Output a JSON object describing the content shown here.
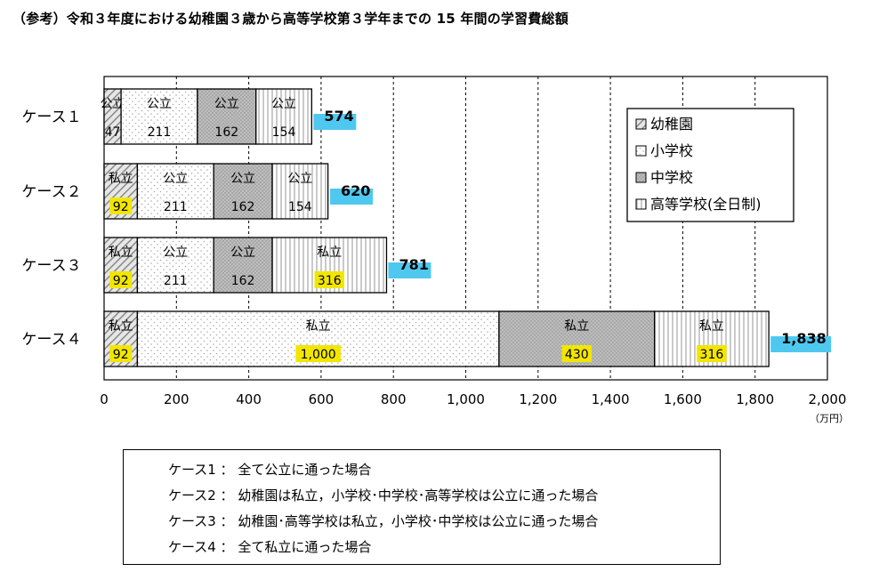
{
  "title": "（参考）令和３年度における幼稚園３歳から高等学校第３学年までの 15 年間の学習費総額",
  "chart_data": {
    "type": "bar",
    "orientation": "horizontal",
    "stacked": true,
    "categories": [
      "ケース１",
      "ケース２",
      "ケース３",
      "ケース４"
    ],
    "series": [
      {
        "name": "幼稚園",
        "values": [
          47,
          92,
          92,
          92
        ],
        "labels": [
          "公立",
          "私立",
          "私立",
          "私立"
        ],
        "highlight": [
          false,
          true,
          true,
          true
        ],
        "pattern": "diagonal"
      },
      {
        "name": "小学校",
        "values": [
          211,
          211,
          211,
          1000
        ],
        "labels": [
          "公立",
          "公立",
          "公立",
          "私立"
        ],
        "highlight": [
          false,
          false,
          false,
          true
        ],
        "pattern": "dots"
      },
      {
        "name": "中学校",
        "values": [
          162,
          162,
          162,
          430
        ],
        "labels": [
          "公立",
          "公立",
          "公立",
          "私立"
        ],
        "highlight": [
          false,
          false,
          false,
          true
        ],
        "pattern": "dense"
      },
      {
        "name": "高等学校(全日制)",
        "values": [
          154,
          154,
          316,
          316
        ],
        "labels": [
          "公立",
          "公立",
          "私立",
          "私立"
        ],
        "highlight": [
          false,
          false,
          true,
          true
        ],
        "pattern": "vertical"
      }
    ],
    "totals": [
      574,
      620,
      781,
      1838
    ],
    "total_labels": [
      "574",
      "620",
      "781",
      "1,838"
    ],
    "value_labels": [
      [
        "47",
        "211",
        "162",
        "154"
      ],
      [
        "92",
        "211",
        "162",
        "154"
      ],
      [
        "92",
        "211",
        "162",
        "316"
      ],
      [
        "92",
        "1,000",
        "430",
        "316"
      ]
    ],
    "xlim": [
      0,
      2000
    ],
    "xticks": [
      0,
      200,
      400,
      600,
      800,
      1000,
      1200,
      1400,
      1600,
      1800,
      2000
    ],
    "xtick_labels": [
      "0",
      "200",
      "400",
      "600",
      "800",
      "1,000",
      "1,200",
      "1,400",
      "1,600",
      "1,800",
      "2,000"
    ],
    "unit": "（万円）",
    "grid": "vertical dashed",
    "legend_position": "top-right",
    "colors": {
      "total_box": "#4fc8f0",
      "highlight": "#f2e600",
      "dense_fill": "#b9b9b9",
      "grid": "#000000"
    }
  },
  "notes": [
    "ケース1 ： 全て公立に通った場合",
    "ケース2 ： 幼稚園は私立，小学校･中学校･高等学校は公立に通った場合",
    "ケース3 ： 幼稚園･高等学校は私立，小学校･中学校は公立に通った場合",
    "ケース4 ： 全て私立に通った場合"
  ]
}
